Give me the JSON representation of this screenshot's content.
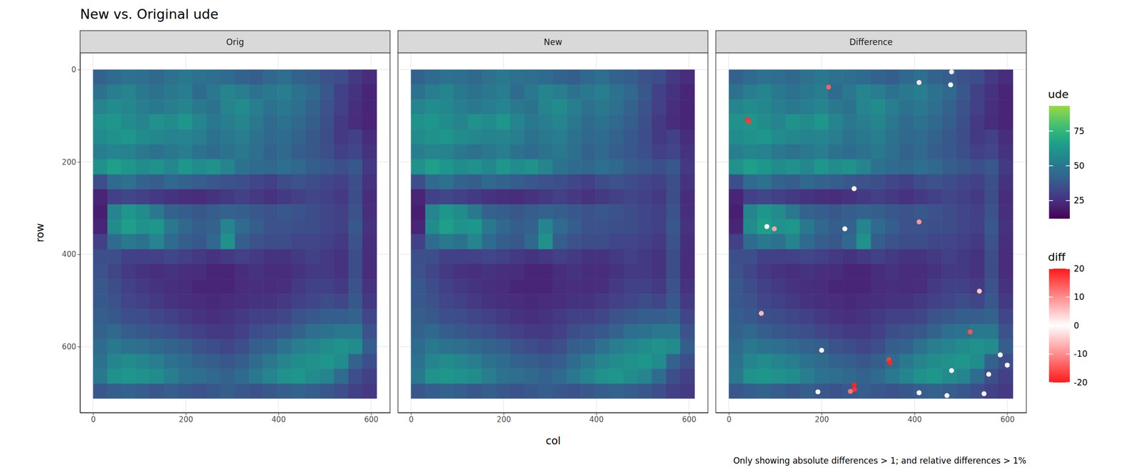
{
  "chart_data": {
    "type": "heatmap",
    "title": "New vs. Original ude",
    "x_label": "col",
    "y_label": "row",
    "caption": "Only showing absolute differences > 1; and relative differences > 1%",
    "panels": [
      "Orig",
      "New",
      "Difference"
    ],
    "xlim": [
      -28,
      641
    ],
    "ylim": [
      743,
      -36
    ],
    "xticks": [
      0,
      200,
      400,
      600
    ],
    "yticks": [
      0,
      200,
      400,
      600
    ],
    "grid": true,
    "x_edges": [
      0,
      31,
      61,
      92,
      122,
      153,
      184,
      214,
      245,
      275,
      306,
      337,
      367,
      398,
      428,
      459,
      490,
      520,
      551,
      581,
      612
    ],
    "y_edges": [
      0,
      32,
      65,
      97,
      130,
      162,
      194,
      227,
      259,
      292,
      324,
      356,
      389,
      421,
      454,
      486,
      518,
      551,
      583,
      616,
      648,
      680,
      712
    ],
    "values": [
      [
        42,
        45,
        48,
        46,
        44,
        47,
        50,
        48,
        46,
        45,
        42,
        40,
        44,
        46,
        42,
        40,
        36,
        34,
        28,
        24
      ],
      [
        48,
        52,
        55,
        50,
        48,
        50,
        52,
        45,
        50,
        55,
        52,
        48,
        50,
        52,
        48,
        44,
        38,
        30,
        26,
        22
      ],
      [
        55,
        58,
        56,
        52,
        50,
        52,
        55,
        50,
        48,
        55,
        58,
        52,
        48,
        50,
        46,
        42,
        36,
        30,
        25,
        22
      ],
      [
        60,
        62,
        58,
        55,
        60,
        58,
        62,
        55,
        50,
        52,
        55,
        50,
        45,
        48,
        44,
        40,
        35,
        28,
        24,
        22
      ],
      [
        58,
        60,
        62,
        58,
        56,
        54,
        55,
        52,
        48,
        50,
        52,
        48,
        44,
        45,
        42,
        38,
        34,
        28,
        30,
        24
      ],
      [
        52,
        55,
        54,
        50,
        48,
        50,
        52,
        48,
        45,
        48,
        50,
        46,
        42,
        44,
        40,
        38,
        35,
        30,
        32,
        26
      ],
      [
        60,
        65,
        62,
        58,
        60,
        56,
        62,
        58,
        60,
        55,
        48,
        45,
        44,
        46,
        44,
        40,
        38,
        35,
        38,
        28
      ],
      [
        35,
        45,
        48,
        42,
        40,
        44,
        42,
        40,
        38,
        36,
        35,
        32,
        30,
        34,
        36,
        34,
        32,
        30,
        35,
        26
      ],
      [
        22,
        30,
        32,
        30,
        28,
        26,
        25,
        24,
        26,
        28,
        30,
        28,
        26,
        28,
        30,
        32,
        30,
        28,
        34,
        24
      ],
      [
        20,
        55,
        62,
        58,
        50,
        42,
        40,
        38,
        40,
        42,
        40,
        38,
        36,
        38,
        36,
        34,
        32,
        30,
        36,
        25
      ],
      [
        22,
        58,
        65,
        60,
        62,
        50,
        44,
        40,
        42,
        55,
        45,
        40,
        36,
        36,
        35,
        34,
        32,
        30,
        38,
        26
      ],
      [
        30,
        45,
        50,
        48,
        55,
        45,
        40,
        38,
        44,
        60,
        40,
        36,
        34,
        34,
        32,
        32,
        30,
        28,
        36,
        25
      ],
      [
        35,
        35,
        30,
        30,
        30,
        32,
        30,
        28,
        26,
        28,
        30,
        28,
        26,
        26,
        28,
        30,
        28,
        26,
        34,
        24
      ],
      [
        36,
        32,
        28,
        26,
        25,
        26,
        25,
        24,
        22,
        22,
        24,
        26,
        24,
        24,
        26,
        28,
        28,
        26,
        34,
        24
      ],
      [
        38,
        34,
        30,
        28,
        26,
        25,
        24,
        22,
        22,
        22,
        24,
        25,
        24,
        25,
        28,
        30,
        30,
        28,
        36,
        26
      ],
      [
        38,
        36,
        32,
        30,
        28,
        26,
        25,
        24,
        23,
        24,
        25,
        26,
        26,
        28,
        30,
        32,
        34,
        32,
        38,
        28
      ],
      [
        40,
        38,
        35,
        34,
        32,
        30,
        28,
        26,
        25,
        26,
        28,
        30,
        30,
        32,
        36,
        38,
        40,
        40,
        42,
        32
      ],
      [
        42,
        44,
        40,
        38,
        36,
        35,
        32,
        30,
        28,
        28,
        30,
        34,
        36,
        38,
        42,
        46,
        48,
        50,
        50,
        36
      ],
      [
        45,
        50,
        48,
        46,
        44,
        42,
        40,
        36,
        34,
        32,
        35,
        40,
        42,
        48,
        52,
        55,
        58,
        60,
        58,
        40
      ],
      [
        48,
        55,
        58,
        55,
        52,
        48,
        45,
        42,
        40,
        38,
        40,
        45,
        50,
        55,
        58,
        60,
        62,
        58,
        42,
        35
      ],
      [
        50,
        60,
        62,
        60,
        58,
        52,
        48,
        46,
        44,
        42,
        45,
        50,
        55,
        60,
        62,
        58,
        55,
        45,
        35,
        30
      ],
      [
        38,
        40,
        42,
        40,
        38,
        40,
        38,
        36,
        38,
        40,
        38,
        36,
        38,
        40,
        42,
        40,
        38,
        35,
        30,
        28
      ]
    ],
    "ude_colorbar": {
      "title": "ude",
      "range": [
        12,
        93
      ],
      "ticks": [
        25,
        50,
        75
      ]
    },
    "diff_colorbar": {
      "title": "diff",
      "range": [
        -20,
        20
      ],
      "ticks": [
        -20,
        -10,
        0,
        10,
        20
      ]
    },
    "diff_points": {
      "x": [
        40,
        43,
        215,
        270,
        271,
        262,
        345,
        347,
        520,
        410,
        98,
        70,
        540,
        480,
        410,
        478,
        82,
        270,
        250,
        200,
        480,
        600,
        585,
        410,
        550,
        470,
        192,
        560
      ],
      "y": [
        108,
        113,
        38,
        683,
        693,
        697,
        628,
        635,
        568,
        330,
        345,
        528,
        480,
        5,
        28,
        33,
        340,
        258,
        345,
        608,
        652,
        640,
        618,
        700,
        702,
        706,
        698,
        660
      ],
      "values": [
        18,
        -17,
        14,
        19,
        -18,
        12,
        17,
        -19,
        15,
        9,
        8,
        6,
        5,
        1.5,
        2,
        -1,
        1,
        1.5,
        1,
        -1.2,
        1,
        -1,
        1,
        -1,
        1.2,
        1,
        -1,
        1
      ]
    }
  }
}
